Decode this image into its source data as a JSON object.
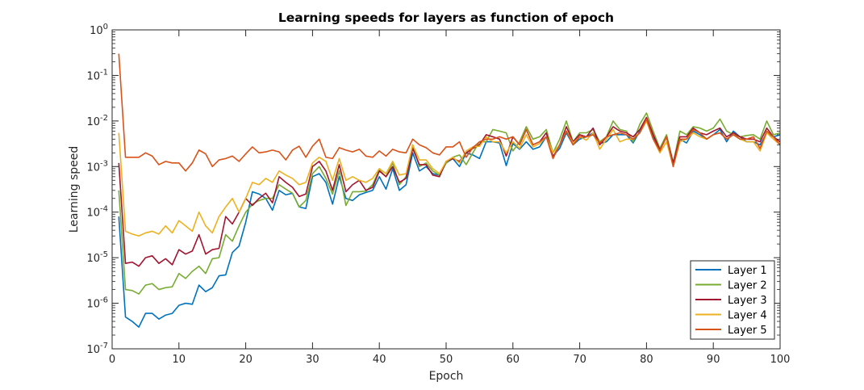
{
  "chart_data": {
    "type": "line",
    "title": "Learning speeds for layers as function of epoch",
    "xlabel": "Epoch",
    "ylabel": "Learning speed",
    "xlim": [
      0,
      100
    ],
    "ylim": [
      1e-07,
      1
    ],
    "yscale": "log",
    "grid": false,
    "legend_position": "bottom-right",
    "x_ticks": [
      0,
      10,
      20,
      30,
      40,
      50,
      60,
      70,
      80,
      90,
      100
    ],
    "x_tick_labels": [
      "0",
      "10",
      "20",
      "30",
      "40",
      "50",
      "60",
      "70",
      "80",
      "90",
      "100"
    ],
    "y_ticks": [
      {
        "base": "10",
        "exp": "-7"
      },
      {
        "base": "10",
        "exp": "-6"
      },
      {
        "base": "10",
        "exp": "-5"
      },
      {
        "base": "10",
        "exp": "-4"
      },
      {
        "base": "10",
        "exp": "-3"
      },
      {
        "base": "10",
        "exp": "-2"
      },
      {
        "base": "10",
        "exp": "-1"
      },
      {
        "base": "10",
        "exp": "0"
      }
    ],
    "x": [
      1,
      2,
      3,
      4,
      5,
      6,
      7,
      8,
      9,
      10,
      11,
      12,
      13,
      14,
      15,
      16,
      17,
      18,
      19,
      20,
      21,
      22,
      23,
      24,
      25,
      26,
      27,
      28,
      29,
      30,
      31,
      32,
      33,
      34,
      35,
      36,
      37,
      38,
      39,
      40,
      41,
      42,
      43,
      44,
      45,
      46,
      47,
      48,
      49,
      50,
      51,
      52,
      53,
      54,
      55,
      56,
      57,
      58,
      59,
      60,
      61,
      62,
      63,
      64,
      65,
      66,
      67,
      68,
      69,
      70,
      71,
      72,
      73,
      74,
      75,
      76,
      77,
      78,
      79,
      80,
      81,
      82,
      83,
      84,
      85,
      86,
      87,
      88,
      89,
      90,
      91,
      92,
      93,
      94,
      95,
      96,
      97,
      98,
      99,
      100
    ],
    "series": [
      {
        "name": "Layer 1",
        "color": "#0072BD",
        "values": [
          8e-05,
          5e-07,
          4e-07,
          3e-07,
          6e-07,
          6e-07,
          4.5e-07,
          5.5e-07,
          6e-07,
          9e-07,
          1e-06,
          9.5e-07,
          2.5e-06,
          1.8e-06,
          2.2e-06,
          4e-06,
          4.2e-06,
          1.3e-05,
          1.8e-05,
          6e-05,
          0.00028,
          0.00025,
          0.0002,
          0.00011,
          0.0003,
          0.00024,
          0.00026,
          0.00013,
          0.00012,
          0.0006,
          0.0007,
          0.00045,
          0.00015,
          0.0006,
          0.0002,
          0.00018,
          0.00024,
          0.00027,
          0.0003,
          0.0006,
          0.00032,
          0.0009,
          0.0003,
          0.0004,
          0.002,
          0.0008,
          0.001,
          0.0007,
          0.00065,
          0.0012,
          0.0015,
          0.001,
          0.002,
          0.0018,
          0.0015,
          0.0035,
          0.0035,
          0.0033,
          0.00105,
          0.0032,
          0.0024,
          0.0035,
          0.0024,
          0.0027,
          0.0045,
          0.0017,
          0.0025,
          0.0055,
          0.003,
          0.004,
          0.0045,
          0.0055,
          0.0032,
          0.0035,
          0.005,
          0.005,
          0.005,
          0.0033,
          0.006,
          0.01,
          0.0045,
          0.0025,
          0.0045,
          0.0011,
          0.004,
          0.0033,
          0.006,
          0.005,
          0.004,
          0.005,
          0.0065,
          0.0035,
          0.006,
          0.0045,
          0.0035,
          0.0035,
          0.003,
          0.0055,
          0.0045,
          0.005
        ]
      },
      {
        "name": "Layer 2",
        "color": "#77AC30",
        "values": [
          0.0003,
          2e-06,
          1.9e-06,
          1.6e-06,
          2.5e-06,
          2.7e-06,
          2e-06,
          2.2e-06,
          2.3e-06,
          4.5e-06,
          3.5e-06,
          5e-06,
          6.5e-06,
          4.5e-06,
          9.5e-06,
          1e-05,
          3.2e-05,
          2.3e-05,
          5e-05,
          0.0001,
          0.00015,
          0.00018,
          0.0002,
          0.0002,
          0.0004,
          0.00032,
          0.00026,
          0.00013,
          0.00018,
          0.0007,
          0.001,
          0.00055,
          0.00025,
          0.0008,
          0.00014,
          0.00028,
          0.00028,
          0.00029,
          0.0004,
          0.00085,
          0.0006,
          0.0012,
          0.0004,
          0.0006,
          0.003,
          0.001,
          0.0012,
          0.0008,
          0.00065,
          0.0012,
          0.0016,
          0.0018,
          0.0011,
          0.002,
          0.0035,
          0.0035,
          0.0065,
          0.006,
          0.0055,
          0.0022,
          0.0035,
          0.0075,
          0.004,
          0.0045,
          0.0065,
          0.002,
          0.004,
          0.01,
          0.0035,
          0.0055,
          0.0055,
          0.0065,
          0.0035,
          0.0045,
          0.01,
          0.0065,
          0.006,
          0.0035,
          0.0085,
          0.015,
          0.006,
          0.0025,
          0.005,
          0.0012,
          0.006,
          0.005,
          0.0075,
          0.007,
          0.006,
          0.007,
          0.011,
          0.006,
          0.005,
          0.0045,
          0.0048,
          0.005,
          0.004,
          0.01,
          0.005,
          0.0055
        ]
      },
      {
        "name": "Layer 3",
        "color": "#A2142F",
        "values": [
          0.0012,
          7.5e-06,
          8e-06,
          6.5e-06,
          1e-05,
          1.1e-05,
          7.5e-06,
          9.5e-06,
          7e-06,
          1.5e-05,
          1.2e-05,
          1.4e-05,
          3.2e-05,
          1.2e-05,
          1.5e-05,
          1.6e-05,
          8e-05,
          5.5e-05,
          0.0001,
          0.0002,
          0.00014,
          0.0002,
          0.00026,
          0.00016,
          0.0006,
          0.00045,
          0.00035,
          0.00022,
          0.00025,
          0.001,
          0.0013,
          0.0008,
          0.0003,
          0.0011,
          0.00028,
          0.0004,
          0.0005,
          0.0003,
          0.00035,
          0.0008,
          0.0006,
          0.001,
          0.00045,
          0.00055,
          0.0025,
          0.0011,
          0.0011,
          0.00065,
          0.0006,
          0.0013,
          0.0015,
          0.0013,
          0.002,
          0.0025,
          0.003,
          0.005,
          0.0045,
          0.004,
          0.0017,
          0.0045,
          0.003,
          0.0065,
          0.003,
          0.0035,
          0.0055,
          0.0016,
          0.003,
          0.0075,
          0.0035,
          0.005,
          0.0045,
          0.007,
          0.003,
          0.0045,
          0.0075,
          0.006,
          0.0055,
          0.0045,
          0.0065,
          0.012,
          0.005,
          0.0023,
          0.0045,
          0.0012,
          0.0045,
          0.0045,
          0.007,
          0.0055,
          0.005,
          0.006,
          0.007,
          0.0045,
          0.0055,
          0.0045,
          0.004,
          0.004,
          0.0035,
          0.007,
          0.0045,
          0.0035
        ]
      },
      {
        "name": "Layer 4",
        "color": "#EDB120",
        "values": [
          0.0055,
          3.8e-05,
          3.3e-05,
          3e-05,
          3.5e-05,
          3.8e-05,
          3.3e-05,
          5e-05,
          3.5e-05,
          6.5e-05,
          5e-05,
          3.8e-05,
          0.0001,
          5e-05,
          3.5e-05,
          8e-05,
          0.00013,
          0.0002,
          0.0001,
          0.0002,
          0.00045,
          0.0004,
          0.00055,
          0.00045,
          0.0008,
          0.00065,
          0.00055,
          0.0004,
          0.00045,
          0.0012,
          0.0016,
          0.0013,
          0.0005,
          0.0015,
          0.0005,
          0.0006,
          0.0005,
          0.00045,
          0.00055,
          0.0009,
          0.0007,
          0.0013,
          0.00065,
          0.0007,
          0.003,
          0.0014,
          0.0014,
          0.0009,
          0.0007,
          0.0013,
          0.0016,
          0.0012,
          0.0022,
          0.0027,
          0.0028,
          0.0045,
          0.0035,
          0.0035,
          0.002,
          0.0035,
          0.0025,
          0.005,
          0.0027,
          0.0032,
          0.0045,
          0.002,
          0.003,
          0.006,
          0.0033,
          0.0045,
          0.0038,
          0.0055,
          0.0024,
          0.004,
          0.0065,
          0.0035,
          0.004,
          0.004,
          0.0055,
          0.01,
          0.004,
          0.002,
          0.0035,
          0.001,
          0.0035,
          0.004,
          0.0055,
          0.0045,
          0.004,
          0.005,
          0.0055,
          0.004,
          0.005,
          0.004,
          0.0035,
          0.0035,
          0.0022,
          0.0055,
          0.004,
          0.003
        ]
      },
      {
        "name": "Layer 5",
        "color": "#D95319",
        "values": [
          0.3,
          0.0016,
          0.0016,
          0.0016,
          0.002,
          0.0017,
          0.0011,
          0.0013,
          0.0012,
          0.0012,
          0.0008,
          0.0012,
          0.0023,
          0.0019,
          0.001,
          0.0014,
          0.0015,
          0.0017,
          0.0013,
          0.0019,
          0.0027,
          0.002,
          0.0021,
          0.0023,
          0.0021,
          0.0014,
          0.0023,
          0.0028,
          0.0016,
          0.0028,
          0.004,
          0.0016,
          0.0015,
          0.0026,
          0.0023,
          0.0021,
          0.0024,
          0.0017,
          0.0016,
          0.0022,
          0.0017,
          0.0024,
          0.0021,
          0.002,
          0.004,
          0.003,
          0.0026,
          0.002,
          0.0018,
          0.0027,
          0.0027,
          0.0035,
          0.0016,
          0.0026,
          0.0035,
          0.004,
          0.004,
          0.0045,
          0.004,
          0.0045,
          0.003,
          0.0065,
          0.003,
          0.0035,
          0.0045,
          0.0015,
          0.003,
          0.006,
          0.003,
          0.0045,
          0.0045,
          0.005,
          0.0033,
          0.0045,
          0.005,
          0.0055,
          0.005,
          0.004,
          0.0055,
          0.011,
          0.004,
          0.0022,
          0.0045,
          0.001,
          0.004,
          0.004,
          0.0065,
          0.0055,
          0.004,
          0.005,
          0.0055,
          0.004,
          0.005,
          0.004,
          0.004,
          0.0045,
          0.0025,
          0.006,
          0.0045,
          0.003
        ]
      }
    ]
  }
}
